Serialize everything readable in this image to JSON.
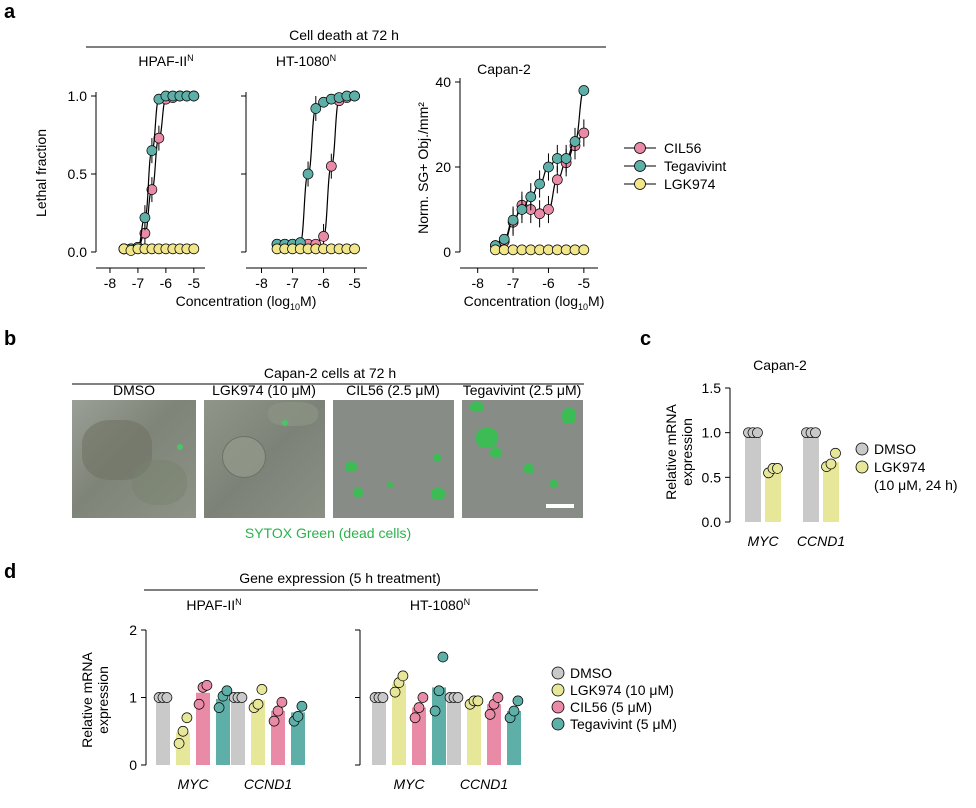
{
  "colors": {
    "cil56": "#E98BA6",
    "tegavivint": "#5FAFA9",
    "lgk974": "#F2E68A",
    "dmso": "#C9C9C9",
    "lgk974_bar": "#E7E79A",
    "cil56_bar": "#E98BA6",
    "tega_bar": "#5FAFA9",
    "sytox": "#2AB24B",
    "micro_bg": "#8C9188",
    "axis": "#000000"
  },
  "panel_letters": {
    "a": "a",
    "b": "b",
    "c": "c",
    "d": "d"
  },
  "panel_a": {
    "header": "Cell death at 72 h",
    "xlabel": "Concentration (log",
    "xlabel_sub": "10",
    "xlabel_end": "M)",
    "legend": [
      "CIL56",
      "Tegavivint",
      "LGK974"
    ],
    "hpaf_title": "HPAF-II",
    "ht_title": "HT-1080",
    "title_sup": "N",
    "capan_title": "Capan-2",
    "ylabel_left": "Lethal fraction",
    "ylabel_right": "Norm. SG+ Obj./mm²"
  },
  "panel_b": {
    "header": "Capan-2 cells at 72 h",
    "labels": [
      "DMSO",
      "LGK974 (10 μM)",
      "CIL56 (2.5 μM)",
      "Tegavivint (2.5 μM)"
    ],
    "footer": "SYTOX Green (dead cells)"
  },
  "panel_c": {
    "title": "Capan-2",
    "ylabel_1": "Relative mRNA",
    "ylabel_2": "expression",
    "legend": [
      "DMSO",
      "LGK974",
      "(10 μM, 24 h)"
    ]
  },
  "panel_d": {
    "header": "Gene expression (5 h treatment)",
    "hpaf_title": "HPAF-II",
    "ht_title": "HT-1080",
    "title_sup": "N",
    "ylabel_1": "Relative mRNA",
    "ylabel_2": "expression",
    "legend": [
      "DMSO",
      "LGK974 (10 μM)",
      "CIL56 (5 μM)",
      "Tegavivint (5 μM)"
    ]
  },
  "chart_data": [
    {
      "type": "scatter",
      "title": "HPAF-IIᴺ",
      "xlabel": "Concentration (log10M)",
      "ylabel": "Lethal fraction",
      "xlim": [
        -8.5,
        -4.6
      ],
      "ylim": [
        0,
        1.0
      ],
      "xticks": [
        -8,
        -7,
        -6,
        -5
      ],
      "yticks": [
        0.0,
        0.5,
        1.0
      ],
      "x": [
        -7.5,
        -7.25,
        -7.0,
        -6.75,
        -6.5,
        -6.25,
        -6.0,
        -5.75,
        -5.5,
        -5.25,
        -5.0
      ],
      "series": [
        {
          "name": "CIL56",
          "values": [
            0.02,
            0.02,
            0.03,
            0.12,
            0.4,
            0.73,
            0.98,
            0.99,
            1.0,
            1.0,
            1.0
          ]
        },
        {
          "name": "Tegavivint",
          "values": [
            0.02,
            0.02,
            0.03,
            0.22,
            0.65,
            0.98,
            1.0,
            1.0,
            1.0,
            1.0,
            1.0
          ]
        },
        {
          "name": "LGK974",
          "values": [
            0.02,
            0.01,
            0.02,
            0.02,
            0.02,
            0.02,
            0.02,
            0.02,
            0.02,
            0.02,
            0.02
          ]
        }
      ]
    },
    {
      "type": "scatter",
      "title": "HT-1080ᴺ",
      "xlabel": "Concentration (log10M)",
      "ylabel": "Lethal fraction",
      "xlim": [
        -8.5,
        -4.6
      ],
      "ylim": [
        0,
        1.0
      ],
      "xticks": [
        -8,
        -7,
        -6,
        -5
      ],
      "yticks": [
        0.0,
        0.5,
        1.0
      ],
      "x": [
        -7.5,
        -7.25,
        -7.0,
        -6.75,
        -6.5,
        -6.25,
        -6.0,
        -5.75,
        -5.5,
        -5.25,
        -5.0
      ],
      "series": [
        {
          "name": "CIL56",
          "values": [
            0.05,
            0.05,
            0.05,
            0.05,
            0.05,
            0.05,
            0.1,
            0.55,
            0.97,
            0.99,
            1.0
          ]
        },
        {
          "name": "Tegavivint",
          "values": [
            0.05,
            0.05,
            0.05,
            0.06,
            0.5,
            0.92,
            0.96,
            0.98,
            0.99,
            1.0,
            1.0
          ]
        },
        {
          "name": "LGK974",
          "values": [
            0.02,
            0.02,
            0.02,
            0.02,
            0.02,
            0.02,
            0.02,
            0.02,
            0.02,
            0.02,
            0.02
          ]
        }
      ]
    },
    {
      "type": "scatter",
      "title": "Capan-2",
      "xlabel": "Concentration (log10M)",
      "ylabel": "Norm. SG+ Obj./mm²",
      "xlim": [
        -8.5,
        -4.6
      ],
      "ylim": [
        0,
        40
      ],
      "xticks": [
        -8,
        -7,
        -6,
        -5
      ],
      "yticks": [
        0,
        20,
        40
      ],
      "x": [
        -7.5,
        -7.25,
        -7.0,
        -6.75,
        -6.5,
        -6.25,
        -6.0,
        -5.75,
        -5.5,
        -5.25,
        -5.0
      ],
      "series": [
        {
          "name": "CIL56",
          "values": [
            1.5,
            2.5,
            7,
            11,
            10,
            9,
            10,
            17,
            21,
            25,
            28
          ]
        },
        {
          "name": "Tegavivint",
          "values": [
            1.5,
            3,
            7.5,
            10,
            13,
            16,
            20,
            22,
            22,
            26,
            38
          ]
        },
        {
          "name": "LGK974",
          "values": [
            0.5,
            0.5,
            0.5,
            0.5,
            0.5,
            0.5,
            0.5,
            0.5,
            0.5,
            0.5,
            0.5
          ]
        }
      ]
    },
    {
      "type": "bar",
      "title": "Capan-2",
      "ylabel": "Relative mRNA expression",
      "categories": [
        "MYC",
        "CCND1"
      ],
      "ylim": [
        0,
        1.5
      ],
      "yticks": [
        0.0,
        0.5,
        1.0,
        1.5
      ],
      "series": [
        {
          "name": "DMSO",
          "values": [
            1.0,
            1.0
          ],
          "points": [
            [
              1.0,
              1.0,
              1.0
            ],
            [
              1.0,
              1.0,
              1.0
            ]
          ]
        },
        {
          "name": "LGK974",
          "values": [
            0.58,
            0.67
          ],
          "points": [
            [
              0.55,
              0.6,
              0.6
            ],
            [
              0.62,
              0.65,
              0.77
            ]
          ]
        }
      ]
    },
    {
      "type": "bar",
      "title": "HPAF-IIᴺ",
      "ylabel": "Relative mRNA expression",
      "categories": [
        "MYC",
        "CCND1"
      ],
      "ylim": [
        0,
        2
      ],
      "yticks": [
        0,
        1,
        2
      ],
      "series": [
        {
          "name": "DMSO",
          "values": [
            1.0,
            1.0
          ],
          "points": [
            [
              1.0,
              1.0,
              1.0
            ],
            [
              1.0,
              1.0,
              1.0
            ]
          ]
        },
        {
          "name": "LGK974 (10 μM)",
          "values": [
            0.48,
            0.96
          ],
          "points": [
            [
              0.32,
              0.5,
              0.7
            ],
            [
              0.85,
              0.9,
              1.12
            ]
          ]
        },
        {
          "name": "CIL56 (5 μM)",
          "values": [
            1.07,
            0.8
          ],
          "points": [
            [
              0.9,
              1.15,
              1.18
            ],
            [
              0.65,
              0.8,
              0.93
            ]
          ]
        },
        {
          "name": "Tegavivint (5 μM)",
          "values": [
            0.98,
            0.78
          ],
          "points": [
            [
              0.85,
              1.02,
              1.1
            ],
            [
              0.65,
              0.72,
              0.87
            ]
          ]
        }
      ]
    },
    {
      "type": "bar",
      "title": "HT-1080ᴺ",
      "ylabel": "Relative mRNA expression",
      "categories": [
        "MYC",
        "CCND1"
      ],
      "ylim": [
        0,
        2
      ],
      "yticks": [
        0,
        1,
        2
      ],
      "series": [
        {
          "name": "DMSO",
          "values": [
            1.0,
            1.0
          ],
          "points": [
            [
              1.0,
              1.0,
              1.0
            ],
            [
              1.0,
              1.0,
              1.0
            ]
          ]
        },
        {
          "name": "LGK974 (10 μM)",
          "values": [
            1.2,
            0.95
          ],
          "points": [
            [
              1.08,
              1.22,
              1.32
            ],
            [
              0.9,
              0.95,
              0.95
            ]
          ]
        },
        {
          "name": "CIL56 (5 μM)",
          "values": [
            0.85,
            0.9
          ],
          "points": [
            [
              0.7,
              0.85,
              1.0
            ],
            [
              0.75,
              0.9,
              1.0
            ]
          ]
        },
        {
          "name": "Tegavivint (5 μM)",
          "values": [
            1.15,
            0.8
          ],
          "points": [
            [
              0.8,
              1.1,
              1.6
            ],
            [
              0.7,
              0.8,
              0.95
            ]
          ]
        }
      ]
    }
  ]
}
